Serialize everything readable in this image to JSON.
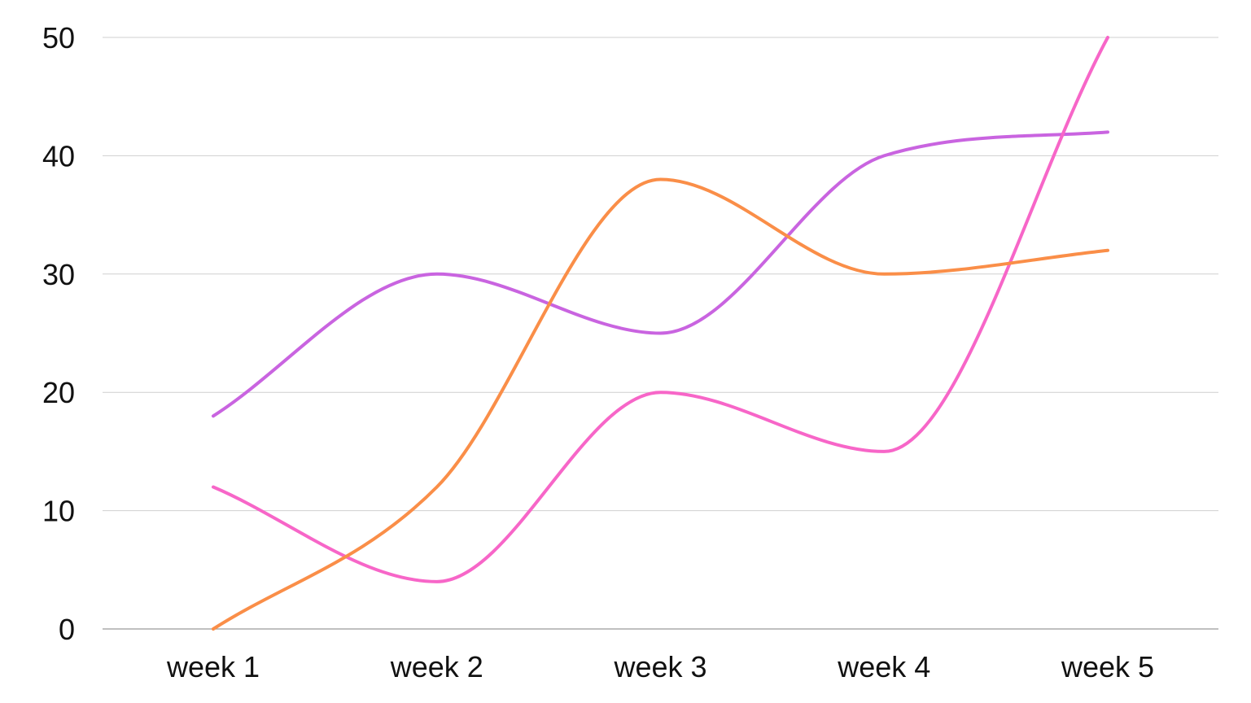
{
  "chart_data": {
    "type": "line",
    "title": "",
    "xlabel": "",
    "ylabel": "",
    "categories": [
      "week 1",
      "week 2",
      "week 3",
      "week 4",
      "week 5"
    ],
    "ylim": [
      0,
      50
    ],
    "yticks": [
      0,
      10,
      20,
      30,
      40,
      50
    ],
    "grid": true,
    "legend": "none",
    "smooth": true,
    "series": [
      {
        "values": [
          18,
          30,
          25,
          40,
          42
        ],
        "color": "#c964e0"
      },
      {
        "values": [
          12,
          4,
          20,
          15,
          50
        ],
        "color": "#f766c8"
      },
      {
        "values": [
          0,
          12,
          38,
          30,
          32
        ],
        "color": "#fa8e48"
      }
    ]
  }
}
